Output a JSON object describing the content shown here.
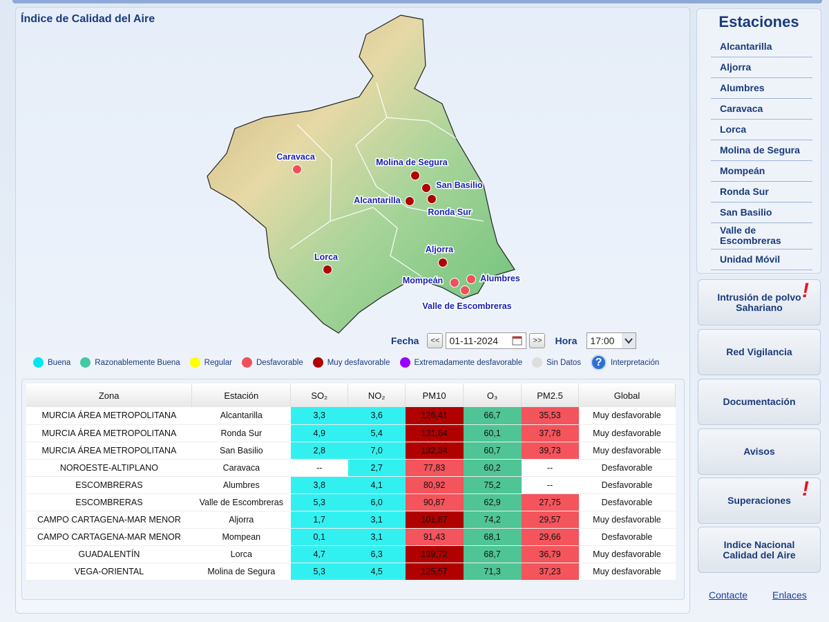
{
  "header": {
    "title": "Índice de Calidad del Aire"
  },
  "map": {
    "stations": [
      {
        "label": "Caravaca",
        "color": "#f0505a"
      },
      {
        "label": "Molina de Segura",
        "color": "#b00000"
      },
      {
        "label": "San Basilio",
        "color": "#b00000"
      },
      {
        "label": "Alcantarilla",
        "color": "#b00000"
      },
      {
        "label": "Ronda Sur",
        "color": "#b00000"
      },
      {
        "label": "Lorca",
        "color": "#b00000"
      },
      {
        "label": "Aljorra",
        "color": "#b00000"
      },
      {
        "label": "Mompeán",
        "color": "#f0505a"
      },
      {
        "label": "Alumbres",
        "color": "#f0505a"
      },
      {
        "label": "Valle de Escombreras",
        "color": "#f0505a"
      }
    ]
  },
  "controls": {
    "fecha_label": "Fecha",
    "prev": "<<",
    "date": "01-11-2024",
    "next": ">>",
    "hora_label": "Hora",
    "hora": "17:00"
  },
  "legend": {
    "items": [
      {
        "label": "Buena",
        "color": "#00e5ee"
      },
      {
        "label": "Razonablemente Buena",
        "color": "#44c8a0"
      },
      {
        "label": "Regular",
        "color": "#ffff00"
      },
      {
        "label": "Desfavorable",
        "color": "#f0505a"
      },
      {
        "label": "Muy desfavorable",
        "color": "#b00000"
      },
      {
        "label": "Extremadamente desfavorable",
        "color": "#9a00ff"
      },
      {
        "label": "Sin Datos",
        "color": "#dddddd"
      }
    ],
    "help_icon": "?",
    "help_label": "Interpretación"
  },
  "table": {
    "headers": [
      "Zona",
      "Estación",
      "SO₂",
      "NO₂",
      "PM10",
      "O₃",
      "PM2.5",
      "Global"
    ],
    "rows": [
      [
        "MURCIA ÁREA METROPOLITANA",
        "Alcantarilla",
        "3,3",
        "3,6",
        "126,41",
        "66,7",
        "35,53",
        "Muy desfavorable"
      ],
      [
        "MURCIA ÁREA METROPOLITANA",
        "Ronda Sur",
        "4,9",
        "5,4",
        "131,64",
        "60,1",
        "37,78",
        "Muy desfavorable"
      ],
      [
        "MURCIA ÁREA METROPOLITANA",
        "San Basilio",
        "2,8",
        "7,0",
        "132,34",
        "60,7",
        "39,73",
        "Muy desfavorable"
      ],
      [
        "NOROESTE-ALTIPLANO",
        "Caravaca",
        "--",
        "2,7",
        "77,83",
        "60,2",
        "--",
        "Desfavorable"
      ],
      [
        "ESCOMBRERAS",
        "Alumbres",
        "3,8",
        "4,1",
        "80,92",
        "75,2",
        "--",
        "Desfavorable"
      ],
      [
        "ESCOMBRERAS",
        "Valle de Escombreras",
        "5,3",
        "6,0",
        "90,87",
        "62,9",
        "27,75",
        "Desfavorable"
      ],
      [
        "CAMPO CARTAGENA-MAR MENOR",
        "Aljorra",
        "1,7",
        "3,1",
        "101,87",
        "74,2",
        "29,57",
        "Muy desfavorable"
      ],
      [
        "CAMPO CARTAGENA-MAR MENOR",
        "Mompean",
        "0,1",
        "3,1",
        "91,43",
        "68,1",
        "29,66",
        "Desfavorable"
      ],
      [
        "GUADALENTÍN",
        "Lorca",
        "4,7",
        "6,3",
        "139,72",
        "68,7",
        "36,79",
        "Muy desfavorable"
      ],
      [
        "VEGA-ORIENTAL",
        "Molina de Segura",
        "5,3",
        "4,5",
        "125,57",
        "71,3",
        "37,23",
        "Muy desfavorable"
      ]
    ],
    "cell_colors": [
      [
        "#33f0f0",
        "#33f0f0",
        "#b00000",
        "#4fc495",
        "#f4545c"
      ],
      [
        "#33f0f0",
        "#33f0f0",
        "#b00000",
        "#4fc495",
        "#f4545c"
      ],
      [
        "#33f0f0",
        "#33f0f0",
        "#b00000",
        "#4fc495",
        "#f4545c"
      ],
      [
        null,
        "#33f0f0",
        "#f4545c",
        "#4fc495",
        null
      ],
      [
        "#33f0f0",
        "#33f0f0",
        "#f4545c",
        "#4fc495",
        null
      ],
      [
        "#33f0f0",
        "#33f0f0",
        "#f4545c",
        "#4fc495",
        "#f4545c"
      ],
      [
        "#33f0f0",
        "#33f0f0",
        "#b00000",
        "#4fc495",
        "#f4545c"
      ],
      [
        "#33f0f0",
        "#33f0f0",
        "#f4545c",
        "#4fc495",
        "#f4545c"
      ],
      [
        "#33f0f0",
        "#33f0f0",
        "#b00000",
        "#4fc495",
        "#f4545c"
      ],
      [
        "#33f0f0",
        "#33f0f0",
        "#b00000",
        "#4fc495",
        "#f4545c"
      ]
    ]
  },
  "sidebar": {
    "title": "Estaciones",
    "stations": [
      "Alcantarilla",
      "Aljorra",
      "Alumbres",
      "Caravaca",
      "Lorca",
      "Molina de Segura",
      "Mompeán",
      "Ronda Sur",
      "San Basilio",
      "Valle de Escombreras",
      "Unidad Móvil"
    ],
    "buttons": [
      {
        "label": "Intrusión de polvo Sahariano",
        "mark": "!"
      },
      {
        "label": "Red Vigilancia"
      },
      {
        "label": "Documentación"
      },
      {
        "label": "Avisos"
      },
      {
        "label": "Superaciones",
        "mark": "!"
      },
      {
        "label": "Indice Nacional Calidad del Aire"
      }
    ],
    "links": [
      "Contacte",
      "Enlaces"
    ]
  }
}
